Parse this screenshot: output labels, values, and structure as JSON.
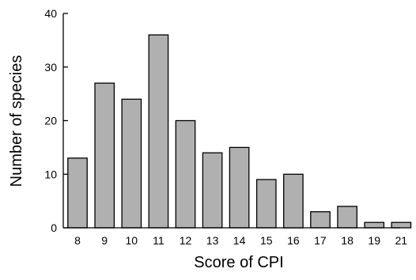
{
  "chart_data": {
    "type": "bar",
    "categories": [
      "8",
      "9",
      "10",
      "11",
      "12",
      "13",
      "14",
      "15",
      "16",
      "17",
      "18",
      "19",
      "21"
    ],
    "values": [
      13,
      27,
      24,
      36,
      20,
      14,
      15,
      9,
      10,
      3,
      4,
      1,
      1
    ],
    "xlabel": "Score of CPI",
    "ylabel": "Number of species",
    "ylim": [
      0,
      40
    ],
    "yticks": [
      "0",
      "10",
      "20",
      "30",
      "40"
    ],
    "grid": false,
    "colors": {
      "bar_fill": "#b0b0b0",
      "bar_stroke": "#000000"
    }
  }
}
